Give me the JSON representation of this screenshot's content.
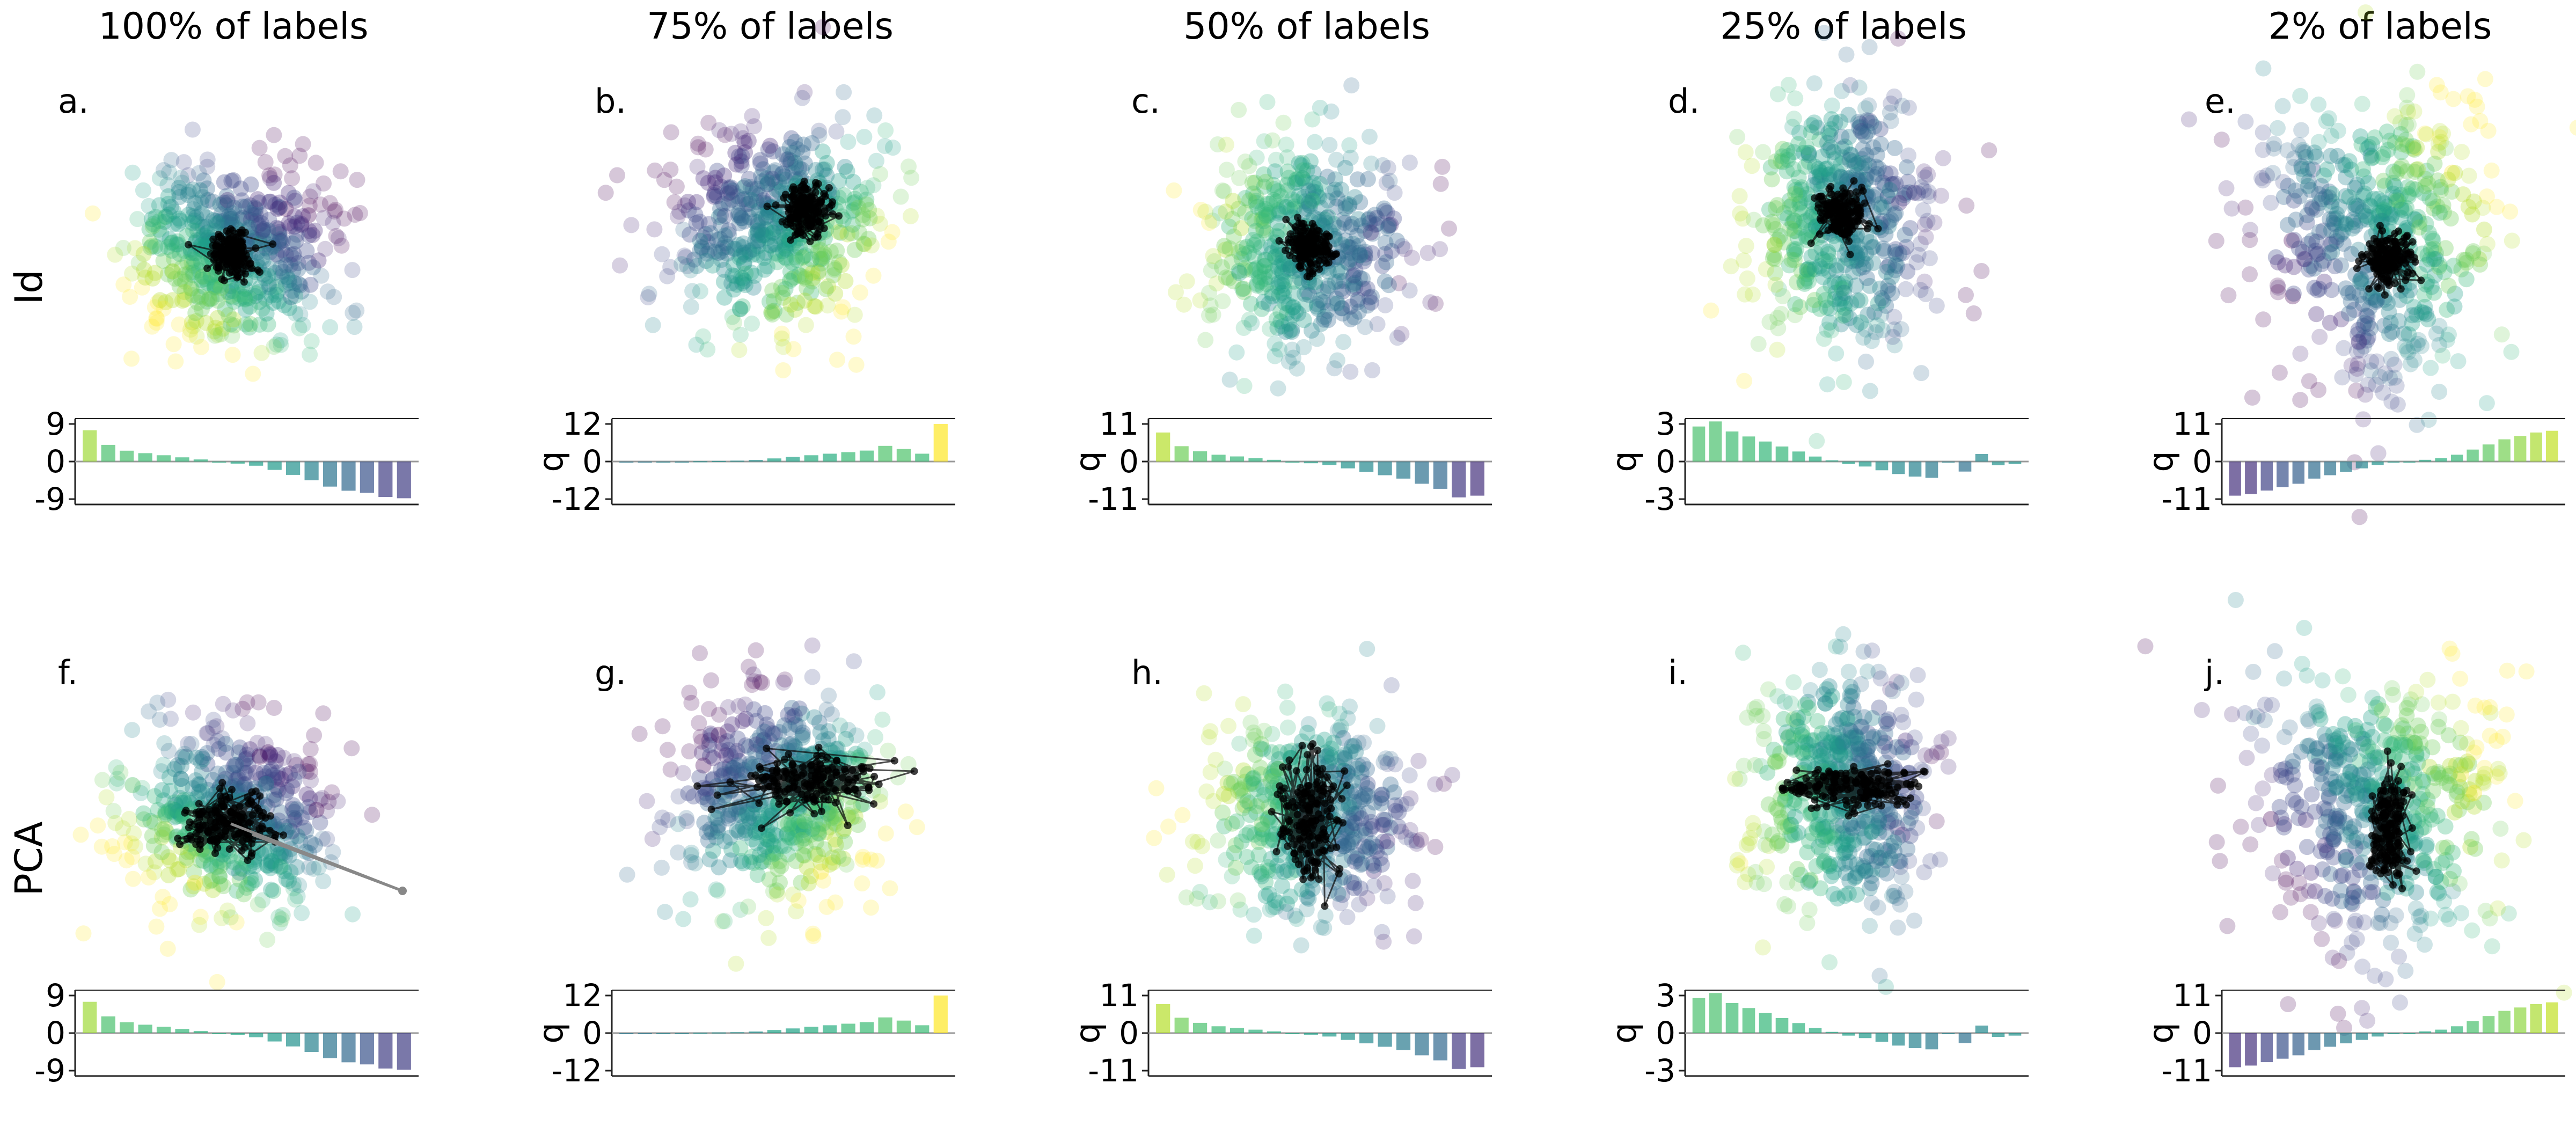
{
  "figure": {
    "column_titles": [
      "100% of labels",
      "75% of labels",
      "50% of labels",
      "25% of labels",
      "2% of labels"
    ],
    "row_labels": [
      "Id",
      "PCA"
    ],
    "bar_ylabel": "q"
  },
  "chart_data": [
    {
      "panel": "a.",
      "row": "Id",
      "column": "100% of labels",
      "type": "bar",
      "ylabel": "",
      "ylim": [
        -9,
        9
      ],
      "yticks": [
        "9",
        "0",
        "-9"
      ],
      "values": [
        7.5,
        4.0,
        2.6,
        2.0,
        1.5,
        1.0,
        0.5,
        0.0,
        -0.5,
        -1.0,
        -2.0,
        -3.2,
        -4.5,
        -6.0,
        -7.0,
        -7.5,
        -8.5,
        -8.8
      ],
      "colors": [
        "#a0da39",
        "#4ac16d",
        "#4ac16d",
        "#3fbc73",
        "#3fbc73",
        "#34b679",
        "#2db27d",
        "#26ad81",
        "#21a685",
        "#1f9e89",
        "#1f9a8a",
        "#22918d",
        "#26828e",
        "#2b748e",
        "#306a8e",
        "#3a548c",
        "#423f85",
        "#423f85"
      ],
      "scatter": {
        "colormap": "viridis",
        "cloud": "large noisy ellipse, yellow-green bottom-left, purple right",
        "core": "tight black cluster at center"
      }
    },
    {
      "panel": "b.",
      "row": "Id",
      "column": "75% of labels",
      "type": "bar",
      "ylabel": "q",
      "ylim": [
        -12,
        12
      ],
      "yticks": [
        "12",
        "0",
        "-12"
      ],
      "values": [
        -0.2,
        -0.1,
        0.0,
        0.0,
        0.1,
        0.2,
        0.3,
        0.5,
        1.0,
        1.5,
        2.0,
        2.5,
        3.0,
        3.5,
        5.0,
        4.0,
        2.5,
        12.0
      ],
      "colors": [
        "#2a788e",
        "#2a788e",
        "#25838e",
        "#25838e",
        "#21908d",
        "#21908d",
        "#21908d",
        "#21908d",
        "#20a386",
        "#20a386",
        "#28ae80",
        "#28ae80",
        "#3bbb75",
        "#3bbb75",
        "#4ec36b",
        "#4ec36b",
        "#3bbb75",
        "#fde725"
      ],
      "scatter": {
        "colormap": "viridis",
        "cloud": "large round cloud, green-yellow lower right, purple top",
        "core": "black cluster slightly above center with trails"
      }
    },
    {
      "panel": "c.",
      "row": "Id",
      "column": "50% of labels",
      "type": "bar",
      "ylabel": "q",
      "ylim": [
        -11,
        11
      ],
      "yticks": [
        "11",
        "0",
        "-11"
      ],
      "values": [
        8.5,
        4.5,
        3.0,
        2.0,
        1.5,
        1.0,
        0.5,
        0.0,
        -0.5,
        -1.0,
        -2.0,
        -3.0,
        -4.0,
        -5.0,
        -6.5,
        -8.0,
        -10.5,
        -10.0
      ],
      "colors": [
        "#b5de2b",
        "#6ece58",
        "#4ac16d",
        "#3bbb75",
        "#35b779",
        "#2db27d",
        "#28ae80",
        "#22a884",
        "#1fa088",
        "#1f9a8a",
        "#21918c",
        "#23898e",
        "#26828e",
        "#297a8e",
        "#2d708e",
        "#31688e",
        "#443a83",
        "#46327e"
      ],
      "scatter": {
        "colormap": "viridis",
        "cloud": "large noisy cloud, green left, purple lower right",
        "core": "black cluster at center"
      }
    },
    {
      "panel": "d.",
      "row": "Id",
      "column": "25% of labels",
      "type": "bar",
      "ylabel": "q",
      "ylim": [
        -3,
        3
      ],
      "yticks": [
        "3",
        "0",
        "-3"
      ],
      "values": [
        2.8,
        3.2,
        2.4,
        2.0,
        1.6,
        1.2,
        0.8,
        0.4,
        0.1,
        -0.2,
        -0.4,
        -0.7,
        -1.0,
        -1.2,
        -1.3,
        0.0,
        -0.8,
        0.6,
        -0.3,
        -0.2
      ],
      "colors": [
        "#4ac16d",
        "#4ac16d",
        "#3fbc73",
        "#3fbc73",
        "#35b779",
        "#35b779",
        "#2db27d",
        "#28ae80",
        "#22a884",
        "#1fa088",
        "#1f9a8a",
        "#21918c",
        "#23898e",
        "#26828e",
        "#297a8e",
        "#25838e",
        "#2d708e",
        "#23898e",
        "#21918c",
        "#21918c"
      ],
      "scatter": {
        "colormap": "viridis",
        "cloud": "tall cloud, yellow-green left, purple top right",
        "core": "black cluster upper center"
      }
    },
    {
      "panel": "e.",
      "row": "Id",
      "column": "2% of labels",
      "type": "bar",
      "ylabel": "q",
      "ylim": [
        -11,
        11
      ],
      "yticks": [
        "11",
        "0",
        "-11"
      ],
      "values": [
        -10.0,
        -9.5,
        -8.5,
        -7.5,
        -6.5,
        -5.0,
        -4.0,
        -3.0,
        -2.0,
        -1.0,
        -0.3,
        0.0,
        0.5,
        1.0,
        2.0,
        3.5,
        5.0,
        6.5,
        7.5,
        8.5,
        9.0
      ],
      "colors": [
        "#46327e",
        "#46327e",
        "#414487",
        "#3b528b",
        "#355f8d",
        "#2f6c8e",
        "#2c728e",
        "#287d8e",
        "#25848e",
        "#21918c",
        "#1f9a8a",
        "#1fa188",
        "#22a884",
        "#2ab07f",
        "#35b779",
        "#4ac16d",
        "#5ec962",
        "#75d054",
        "#90d743",
        "#aadc32",
        "#c2df23"
      ],
      "scatter": {
        "colormap": "viridis",
        "cloud": "triangular cloud, purple left, yellow-green upper right",
        "core": "black cluster center"
      }
    },
    {
      "panel": "f.",
      "row": "PCA",
      "column": "100% of labels",
      "type": "bar",
      "ylabel": "",
      "ylim": [
        -9,
        9
      ],
      "yticks": [
        "9",
        "0",
        "-9"
      ],
      "values": [
        7.5,
        4.0,
        2.6,
        2.0,
        1.5,
        1.0,
        0.5,
        0.0,
        -0.5,
        -1.0,
        -2.0,
        -3.2,
        -4.5,
        -6.0,
        -7.0,
        -7.5,
        -8.5,
        -8.8
      ],
      "colors": [
        "#a0da39",
        "#4ac16d",
        "#4ac16d",
        "#3fbc73",
        "#3fbc73",
        "#34b679",
        "#2db27d",
        "#26ad81",
        "#21a685",
        "#1f9e89",
        "#1f9a8a",
        "#22918d",
        "#26828e",
        "#2b748e",
        "#306a8e",
        "#3a548c",
        "#423f85",
        "#423f85"
      ],
      "scatter": {
        "colormap": "viridis",
        "cloud": "large noisy ellipse, yellow-green bottom-left, purple right",
        "core": "elongated black cluster with long grey lines to the right"
      }
    },
    {
      "panel": "g.",
      "row": "PCA",
      "column": "75% of labels",
      "type": "bar",
      "ylabel": "q",
      "ylim": [
        -12,
        12
      ],
      "yticks": [
        "12",
        "0",
        "-12"
      ],
      "values": [
        -0.2,
        -0.1,
        0.0,
        0.0,
        0.1,
        0.2,
        0.3,
        0.5,
        1.0,
        1.5,
        2.0,
        2.5,
        3.0,
        3.5,
        5.0,
        4.0,
        2.5,
        12.0
      ],
      "colors": [
        "#2a788e",
        "#2a788e",
        "#25838e",
        "#25838e",
        "#21908d",
        "#21908d",
        "#21908d",
        "#21908d",
        "#20a386",
        "#20a386",
        "#28ae80",
        "#28ae80",
        "#3bbb75",
        "#3bbb75",
        "#4ec36b",
        "#4ec36b",
        "#3bbb75",
        "#fde725"
      ],
      "scatter": {
        "colormap": "viridis",
        "cloud": "large round cloud",
        "core": "wide black scribble cluster"
      }
    },
    {
      "panel": "h.",
      "row": "PCA",
      "column": "50% of labels",
      "type": "bar",
      "ylabel": "q",
      "ylim": [
        -11,
        11
      ],
      "yticks": [
        "11",
        "0",
        "-11"
      ],
      "values": [
        8.5,
        4.5,
        3.0,
        2.0,
        1.5,
        1.0,
        0.5,
        0.0,
        -0.5,
        -1.0,
        -2.0,
        -3.0,
        -4.0,
        -5.0,
        -6.5,
        -8.0,
        -10.5,
        -10.0
      ],
      "colors": [
        "#b5de2b",
        "#6ece58",
        "#4ac16d",
        "#3bbb75",
        "#35b779",
        "#2db27d",
        "#28ae80",
        "#22a884",
        "#1fa088",
        "#1f9a8a",
        "#21918c",
        "#23898e",
        "#26828e",
        "#297a8e",
        "#2d708e",
        "#31688e",
        "#443a83",
        "#46327e"
      ],
      "scatter": {
        "colormap": "viridis",
        "cloud": "large noisy cloud",
        "core": "tall black scribble cluster"
      }
    },
    {
      "panel": "i.",
      "row": "PCA",
      "column": "25% of labels",
      "type": "bar",
      "ylabel": "q",
      "ylim": [
        -3,
        3
      ],
      "yticks": [
        "3",
        "0",
        "-3"
      ],
      "values": [
        2.8,
        3.2,
        2.4,
        2.0,
        1.6,
        1.2,
        0.8,
        0.4,
        0.1,
        -0.2,
        -0.4,
        -0.7,
        -1.0,
        -1.2,
        -1.3,
        0.0,
        -0.8,
        0.6,
        -0.3,
        -0.2
      ],
      "colors": [
        "#4ac16d",
        "#4ac16d",
        "#3fbc73",
        "#3fbc73",
        "#35b779",
        "#35b779",
        "#2db27d",
        "#28ae80",
        "#22a884",
        "#1fa088",
        "#1f9a8a",
        "#21918c",
        "#23898e",
        "#26828e",
        "#297a8e",
        "#25838e",
        "#2d708e",
        "#23898e",
        "#21918c",
        "#21918c"
      ],
      "scatter": {
        "colormap": "viridis",
        "cloud": "tall cloud",
        "core": "wide flat black scribble"
      }
    },
    {
      "panel": "j.",
      "row": "PCA",
      "column": "2% of labels",
      "type": "bar",
      "ylabel": "q",
      "ylim": [
        -11,
        11
      ],
      "yticks": [
        "11",
        "0",
        "-11"
      ],
      "values": [
        -10.0,
        -9.5,
        -8.5,
        -7.5,
        -6.5,
        -5.0,
        -4.0,
        -3.0,
        -2.0,
        -1.0,
        -0.3,
        0.0,
        0.5,
        1.0,
        2.0,
        3.5,
        5.0,
        6.5,
        7.5,
        8.5,
        9.0
      ],
      "colors": [
        "#46327e",
        "#46327e",
        "#414487",
        "#3b528b",
        "#355f8d",
        "#2f6c8e",
        "#2c728e",
        "#287d8e",
        "#25848e",
        "#21918c",
        "#1f9a8a",
        "#1fa188",
        "#22a884",
        "#2ab07f",
        "#35b779",
        "#4ac16d",
        "#5ec962",
        "#75d054",
        "#90d743",
        "#aadc32",
        "#c2df23"
      ],
      "scatter": {
        "colormap": "viridis",
        "cloud": "triangular cloud",
        "core": "tall black cluster"
      }
    }
  ]
}
